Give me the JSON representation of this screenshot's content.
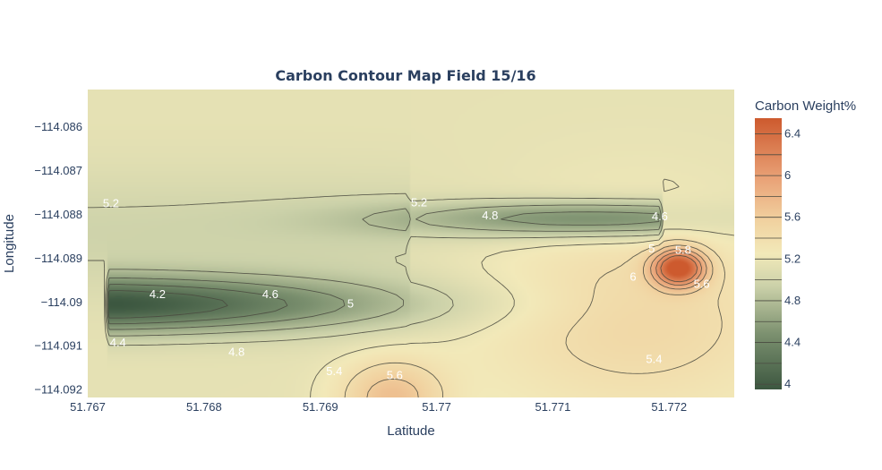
{
  "chart_data": {
    "type": "contour",
    "title": "Carbon Contour Map Field 15/16",
    "xlabel": "Latitude",
    "ylabel": "Longitude",
    "colorbar_title": "Carbon Weight%",
    "x_ticks": [
      "51.767",
      "51.768",
      "51.769",
      "51.77",
      "51.771",
      "51.772"
    ],
    "y_ticks": [
      "−114.086",
      "−114.087",
      "−114.088",
      "−114.089",
      "−114.09",
      "−114.091",
      "−114.092"
    ],
    "colorbar_ticks": [
      "6.4",
      "6",
      "5.6",
      "5.2",
      "4.8",
      "4.4",
      "4"
    ],
    "xlim": [
      51.767,
      51.77256
    ],
    "ylim": [
      -114.09217,
      -114.08514
    ],
    "zlim": [
      3.95,
      6.55
    ],
    "colorscale": [
      [
        0.0,
        "#3c5740"
      ],
      [
        0.2,
        "#7a8f6e"
      ],
      [
        0.38,
        "#cbd1a9"
      ],
      [
        0.5,
        "#f2e9b9"
      ],
      [
        0.62,
        "#f1d2a0"
      ],
      [
        0.78,
        "#e9a176"
      ],
      [
        1.0,
        "#cd5a2e"
      ]
    ],
    "contour_levels": [
      4.2,
      4.4,
      4.6,
      4.8,
      5.0,
      5.2,
      5.4,
      5.6,
      5.8,
      6.0,
      6.2
    ],
    "contour_labels": [
      {
        "text": "5.2",
        "x": 51.7672,
        "y": -114.08775
      },
      {
        "text": "5.2",
        "x": 51.76985,
        "y": -114.08773
      },
      {
        "text": "4.8",
        "x": 51.77046,
        "y": -114.08802
      },
      {
        "text": "4.6",
        "x": 51.77192,
        "y": -114.08804
      },
      {
        "text": "5",
        "x": 51.77185,
        "y": -114.08878
      },
      {
        "text": "5.8",
        "x": 51.77212,
        "y": -114.08881
      },
      {
        "text": "6",
        "x": 51.77169,
        "y": -114.08942
      },
      {
        "text": "5.6",
        "x": 51.77228,
        "y": -114.08958
      },
      {
        "text": "4.2",
        "x": 51.7676,
        "y": -114.08982
      },
      {
        "text": "4.6",
        "x": 51.76857,
        "y": -114.08982
      },
      {
        "text": "5",
        "x": 51.76926,
        "y": -114.09003
      },
      {
        "text": "4.4",
        "x": 51.76726,
        "y": -114.09092
      },
      {
        "text": "4.8",
        "x": 51.76828,
        "y": -114.09114
      },
      {
        "text": "5.4",
        "x": 51.76912,
        "y": -114.09158
      },
      {
        "text": "5.6",
        "x": 51.76964,
        "y": -114.09167
      },
      {
        "text": "5.4",
        "x": 51.77187,
        "y": -114.0913
      }
    ]
  }
}
